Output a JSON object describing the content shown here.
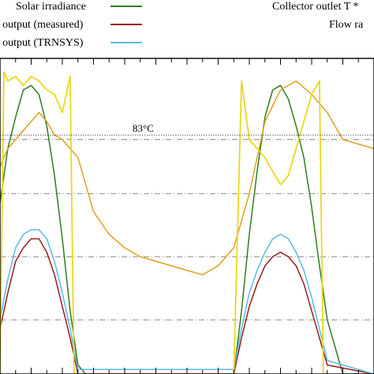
{
  "chart_data": {
    "type": "line",
    "title": "",
    "xlabel": "",
    "ylabel": "",
    "grid": "horizontal dash-dot lines",
    "legend_position": "top, two columns, partially cropped",
    "annotations": [
      {
        "text": "83°C",
        "y": 83
      }
    ],
    "legend": [
      {
        "label": "Solar irradiance",
        "color": "#2e7d1f"
      },
      {
        "label": "r output (measured)",
        "color": "#9b1c1c"
      },
      {
        "label": "r output (TRNSYS)",
        "color": "#5bb8e8"
      },
      {
        "label": "Collector outlet T *",
        "color": "#e0a020"
      },
      {
        "label": "Flow ra",
        "color": "#e8d81a"
      }
    ],
    "x_range": [
      0,
      48
    ],
    "y_range_celsius": [
      30,
      100
    ],
    "series": [
      {
        "name": "Solar irradiance",
        "color": "#2e7d1f",
        "x": [
          0,
          1,
          2,
          3,
          4,
          5,
          6,
          7,
          8,
          9,
          10,
          11,
          15,
          20,
          30,
          31,
          32,
          33,
          34,
          35,
          36,
          37,
          38,
          39,
          40,
          41,
          42,
          44,
          48
        ],
        "y": [
          68,
          80,
          87,
          93,
          94,
          92,
          85,
          74,
          60,
          44,
          32,
          30,
          30,
          30,
          30,
          44,
          61,
          75,
          87,
          93,
          94,
          91,
          85,
          78,
          67,
          54,
          42,
          30,
          30
        ]
      },
      {
        "name": "r output (measured)",
        "color": "#9b1c1c",
        "x": [
          0,
          1,
          2,
          3,
          4,
          5,
          6,
          7,
          8,
          9,
          10,
          30,
          31,
          32,
          33,
          34,
          35,
          36,
          37,
          38,
          39,
          40,
          41,
          42,
          48
        ],
        "y": [
          40,
          48,
          55,
          58,
          60,
          60,
          57,
          52,
          45,
          38,
          30,
          30,
          38,
          45,
          50,
          54,
          56,
          57,
          56,
          54,
          50,
          44,
          38,
          32,
          30
        ]
      },
      {
        "name": "r output (TRNSYS)",
        "color": "#5bb8e8",
        "x": [
          0,
          1,
          2,
          3,
          4,
          5,
          6,
          7,
          8,
          9,
          10,
          30,
          31,
          32,
          33,
          34,
          35,
          36,
          37,
          38,
          39,
          40,
          41,
          42,
          48
        ],
        "y": [
          42,
          51,
          58,
          61,
          62,
          62,
          60,
          55,
          48,
          40,
          31,
          31,
          40,
          48,
          53,
          57,
          60,
          61,
          60,
          57,
          53,
          47,
          40,
          33,
          30
        ]
      },
      {
        "name": "Collector outlet T *",
        "color": "#e0a020",
        "x": [
          0,
          1,
          2,
          3,
          4,
          5,
          6,
          7,
          8,
          9,
          10,
          12,
          14,
          16,
          18,
          20,
          22,
          24,
          26,
          28,
          30,
          32,
          34,
          36,
          38,
          40,
          42,
          44,
          48
        ],
        "y": [
          76,
          80,
          82,
          84,
          86,
          88,
          86,
          83,
          82,
          80,
          78,
          66,
          61,
          58,
          56,
          55,
          54,
          53,
          52,
          54,
          58,
          70,
          86,
          93,
          95,
          92,
          88,
          82,
          80
        ]
      },
      {
        "name": "Flow ra",
        "color": "#e8d81a",
        "x": [
          0,
          0.5,
          1,
          2,
          3,
          4,
          5,
          6,
          7,
          8,
          9,
          9.5,
          10,
          30,
          31,
          32,
          33,
          34,
          35,
          36,
          37,
          38,
          39,
          40,
          41,
          41.5,
          42
        ],
        "y": [
          30,
          97,
          95,
          96,
          94,
          96,
          95,
          93,
          92,
          88,
          96,
          30,
          30,
          30,
          95,
          82,
          80,
          78,
          75,
          72,
          74,
          80,
          86,
          92,
          95,
          30,
          30
        ]
      }
    ]
  }
}
